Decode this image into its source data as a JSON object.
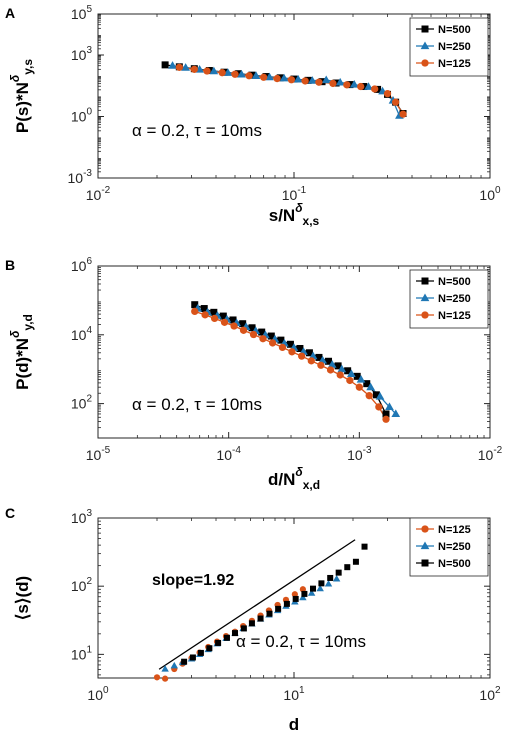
{
  "chart_data": [
    {
      "type": "line",
      "panel_label": "A",
      "x_scale": "log",
      "y_scale": "log",
      "xlim": [
        0.01,
        1
      ],
      "ylim": [
        0.001,
        100000
      ],
      "x_ticks": [
        {
          "value": 0.01,
          "base": "10",
          "exp": "-2"
        },
        {
          "value": 0.1,
          "base": "10",
          "exp": "-1"
        },
        {
          "value": 1,
          "base": "10",
          "exp": "0"
        }
      ],
      "y_ticks": [
        {
          "value": 0.001,
          "base": "10",
          "exp": "-3"
        },
        {
          "value": 1,
          "base": "10",
          "exp": "0"
        },
        {
          "value": 1000,
          "base": "10",
          "exp": "3"
        },
        {
          "value": 100000,
          "base": "10",
          "exp": "5"
        }
      ],
      "ylabel": {
        "main": "P(s)*N",
        "sup": "δ",
        "sub": "y,s"
      },
      "xlabel": {
        "main": "s/N",
        "sup": "δ",
        "sub": "x,s"
      },
      "annotation": "α = 0.2, τ = 10ms",
      "legend": [
        "N=500",
        "N=250",
        "N=125"
      ],
      "legend_position": "top-right",
      "series": [
        {
          "name": "N=500",
          "marker": "square",
          "color": "#000000",
          "x": [
            0.022,
            0.026,
            0.031,
            0.037,
            0.044,
            0.052,
            0.061,
            0.072,
            0.085,
            0.1,
            0.118,
            0.139,
            0.164,
            0.193,
            0.227,
            0.267,
            0.3,
            0.33,
            0.36
          ],
          "y": [
            330,
            265,
            215,
            175,
            145,
            122,
            104,
            89,
            77,
            67,
            58,
            50,
            43,
            36,
            29,
            21,
            12,
            5,
            1.4
          ]
        },
        {
          "name": "N=250",
          "marker": "triangle",
          "color": "#1f77b4",
          "x": [
            0.024,
            0.028,
            0.033,
            0.039,
            0.046,
            0.054,
            0.064,
            0.075,
            0.089,
            0.105,
            0.124,
            0.146,
            0.172,
            0.203,
            0.24,
            0.283,
            0.32,
            0.345
          ],
          "y": [
            300,
            240,
            195,
            162,
            135,
            113,
            96,
            83,
            73,
            64,
            56,
            60,
            46,
            36,
            28,
            17,
            6,
            1.1
          ]
        },
        {
          "name": "N=125",
          "marker": "circle",
          "color": "#d95319",
          "x": [
            0.026,
            0.031,
            0.036,
            0.043,
            0.05,
            0.059,
            0.07,
            0.082,
            0.097,
            0.114,
            0.134,
            0.158,
            0.186,
            0.219,
            0.258,
            0.3,
            0.33,
            0.36
          ],
          "y": [
            250,
            200,
            165,
            137,
            115,
            97,
            82,
            71,
            62,
            54,
            47,
            41,
            35,
            29,
            22,
            13,
            5,
            1.3
          ]
        }
      ]
    },
    {
      "type": "line",
      "panel_label": "B",
      "x_scale": "log",
      "y_scale": "log",
      "xlim": [
        1e-05,
        0.01
      ],
      "ylim": [
        10,
        1000000
      ],
      "x_ticks": [
        {
          "value": 1e-05,
          "base": "10",
          "exp": "-5"
        },
        {
          "value": 0.0001,
          "base": "10",
          "exp": "-4"
        },
        {
          "value": 0.001,
          "base": "10",
          "exp": "-3"
        },
        {
          "value": 0.01,
          "base": "10",
          "exp": "-2"
        }
      ],
      "y_ticks": [
        {
          "value": 100,
          "base": "10",
          "exp": "2"
        },
        {
          "value": 10000,
          "base": "10",
          "exp": "4"
        },
        {
          "value": 1000000,
          "base": "10",
          "exp": "6"
        }
      ],
      "ylabel": {
        "main": "P(d)*N",
        "sup": "δ",
        "sub": "y,d"
      },
      "xlabel": {
        "main": "d/N",
        "sup": "δ",
        "sub": "x,d"
      },
      "annotation": "α = 0.2, τ = 10ms",
      "legend": [
        "N=500",
        "N=250",
        "N=125"
      ],
      "legend_position": "top-right",
      "series": [
        {
          "name": "N=500",
          "marker": "square",
          "color": "#000000",
          "x": [
            5.5e-05,
            6.5e-05,
            7.7e-05,
            9.1e-05,
            0.000108,
            0.000128,
            0.000151,
            0.000179,
            0.000212,
            0.000251,
            0.000297,
            0.000351,
            0.000415,
            0.000491,
            0.000581,
            0.000688,
            0.000814,
            0.000963,
            0.00114,
            0.00135,
            0.0016
          ],
          "y": [
            75000,
            58000,
            45000,
            35000,
            27000,
            21000,
            16000,
            12000,
            9200,
            7000,
            5300,
            4000,
            3000,
            2200,
            1700,
            1250,
            900,
            620,
            380,
            180,
            50
          ]
        },
        {
          "name": "N=250",
          "marker": "triangle",
          "color": "#1f77b4",
          "x": [
            5.8e-05,
            6.9e-05,
            8.2e-05,
            9.7e-05,
            0.000115,
            0.000136,
            0.000161,
            0.000191,
            0.000226,
            0.000267,
            0.000316,
            0.000374,
            0.000443,
            0.000524,
            0.00062,
            0.000734,
            0.000869,
            0.00103,
            0.00122,
            0.00144,
            0.0017,
            0.0019
          ],
          "y": [
            58000,
            45000,
            36000,
            28000,
            22000,
            17000,
            13000,
            9800,
            7400,
            5600,
            4200,
            3200,
            2400,
            1800,
            1350,
            1000,
            730,
            500,
            300,
            160,
            80,
            50
          ]
        },
        {
          "name": "N=125",
          "marker": "circle",
          "color": "#d95319",
          "x": [
            5.5e-05,
            6.6e-05,
            7.8e-05,
            9.3e-05,
            0.00011,
            0.00013,
            0.000155,
            0.000183,
            0.000217,
            0.000258,
            0.000305,
            0.000362,
            0.000429,
            0.000508,
            0.000602,
            0.000714,
            0.000846,
            0.001,
            0.00119,
            0.00141,
            0.0016
          ],
          "y": [
            48000,
            38000,
            30000,
            23000,
            18000,
            13500,
            10200,
            7700,
            5800,
            4300,
            3200,
            2400,
            1750,
            1300,
            950,
            680,
            470,
            300,
            170,
            80,
            35
          ]
        }
      ]
    },
    {
      "type": "scatter",
      "panel_label": "C",
      "x_scale": "log",
      "y_scale": "log",
      "xlim": [
        1,
        100
      ],
      "ylim": [
        4.5,
        1000
      ],
      "x_ticks": [
        {
          "value": 1,
          "base": "10",
          "exp": "0"
        },
        {
          "value": 10,
          "base": "10",
          "exp": "1"
        },
        {
          "value": 100,
          "base": "10",
          "exp": "2"
        }
      ],
      "y_ticks": [
        {
          "value": 10,
          "base": "10",
          "exp": "1"
        },
        {
          "value": 100,
          "base": "10",
          "exp": "2"
        },
        {
          "value": 1000,
          "base": "10",
          "exp": "3"
        }
      ],
      "ylabel": {
        "main": "⟨s⟩(d)",
        "sup": "",
        "sub": ""
      },
      "xlabel": {
        "main": "d",
        "sup": "",
        "sub": ""
      },
      "annotation": "α = 0.2, τ = 10ms",
      "slope_label": "slope=1.92",
      "slope_line": {
        "x": [
          2.05,
          20.5
        ],
        "y": [
          6.05,
          480
        ]
      },
      "legend": [
        "N=125",
        "N=250",
        "N=500"
      ],
      "legend_position": "top-right",
      "series": [
        {
          "name": "N=125",
          "marker": "circle",
          "color": "#d95319",
          "x": [
            2,
            2.2,
            2.45,
            2.7,
            3,
            3.3,
            3.65,
            4.05,
            4.5,
            5,
            5.5,
            6.1,
            6.75,
            7.45,
            8.25,
            9.1,
            10.1,
            11.1
          ],
          "y": [
            4.6,
            4.4,
            6.1,
            7.3,
            8.8,
            10.6,
            12.8,
            15.4,
            18.5,
            21.5,
            26,
            31,
            37,
            44,
            53,
            63,
            76,
            90
          ]
        },
        {
          "name": "N=250",
          "marker": "triangle",
          "color": "#1f77b4",
          "x": [
            2.2,
            2.45,
            2.7,
            3,
            3.3,
            3.65,
            4.05,
            4.5,
            5,
            5.5,
            6.1,
            6.75,
            7.45,
            8.25,
            9.1,
            10.1,
            11.1,
            12.3,
            13.6,
            15,
            16.5
          ],
          "y": [
            6.1,
            6.8,
            7.6,
            8.6,
            10,
            11.8,
            14.3,
            17.2,
            20.5,
            24,
            28,
            33,
            38,
            44,
            51,
            59,
            68,
            79,
            92,
            108,
            128
          ]
        },
        {
          "name": "N=500",
          "marker": "square",
          "color": "#000000",
          "x": [
            2.75,
            3.05,
            3.35,
            3.7,
            4.1,
            4.55,
            5,
            5.55,
            6.1,
            6.75,
            7.5,
            8.3,
            9.2,
            10.2,
            11.3,
            12.5,
            13.8,
            15.3,
            16.9,
            18.7,
            20.7,
            22.9
          ],
          "y": [
            7.8,
            9,
            10.5,
            12.3,
            14.7,
            17.5,
            20.5,
            24,
            28.5,
            33.5,
            39.5,
            46.5,
            55,
            65,
            77,
            92,
            110,
            132,
            158,
            190,
            228,
            380
          ]
        }
      ]
    }
  ]
}
